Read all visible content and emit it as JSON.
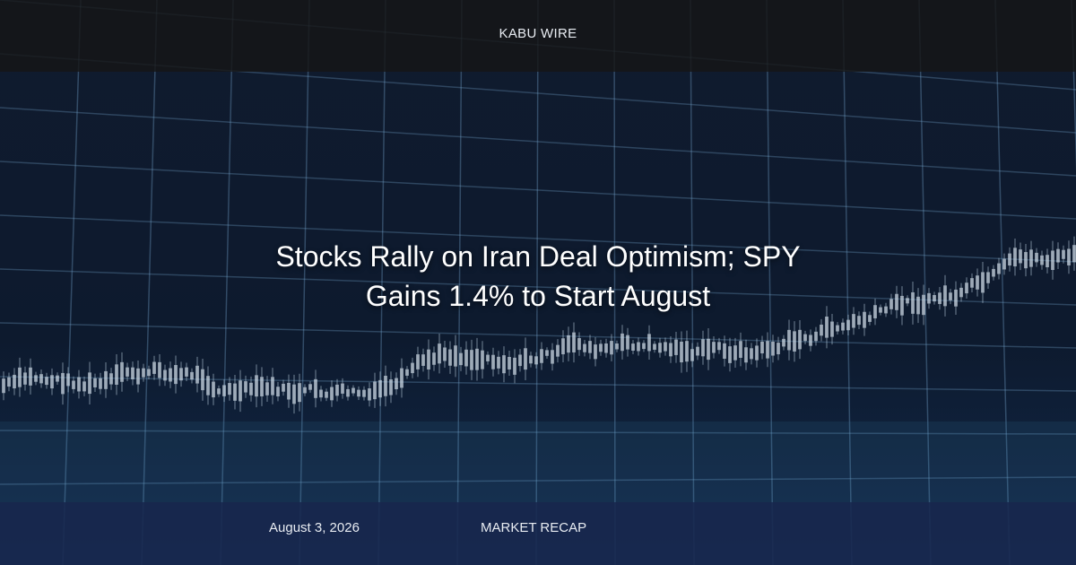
{
  "header": {
    "brand": "KABU WIRE"
  },
  "headline": "Stocks Rally on Iran Deal Optimism; SPY Gains 1.4% to Start August",
  "footer": {
    "date": "August 3, 2026",
    "category": "MARKET RECAP"
  }
}
